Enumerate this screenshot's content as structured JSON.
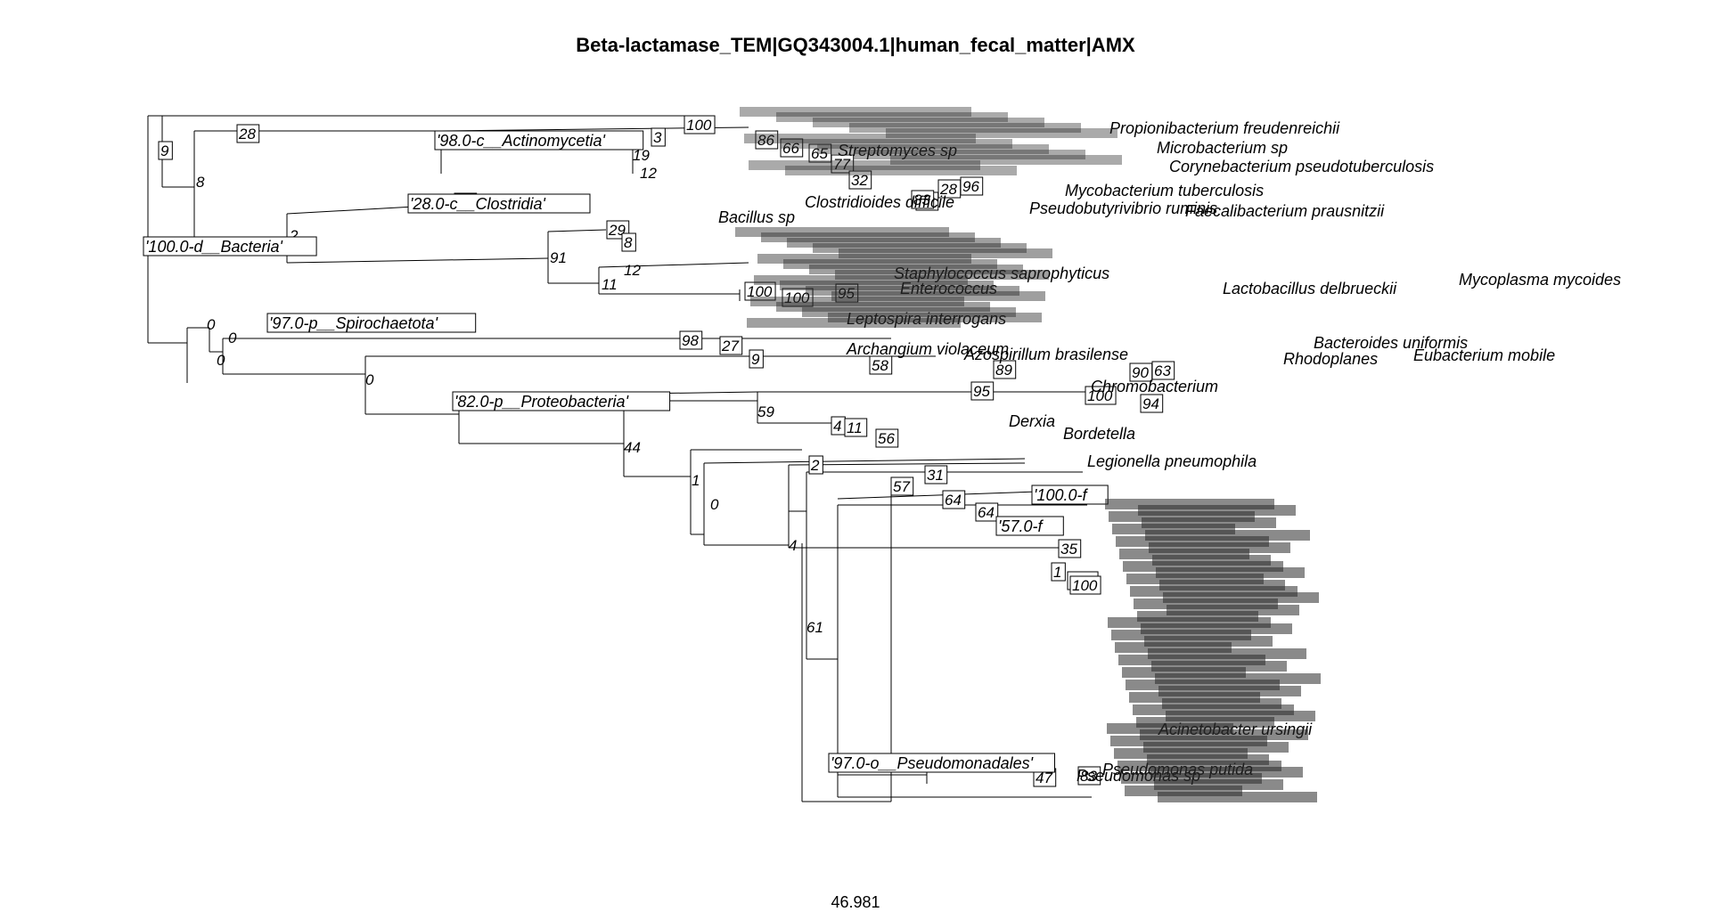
{
  "title": "Beta-lactamase_TEM|GQ343004.1|human_fecal_matter|AMX",
  "scale_label": "46.981",
  "clades": [
    "'100.0-d__Bacteria'",
    "'98.0-c__Actinomycetia'",
    "'28.0-c__Clostridia'",
    "'97.0-p__Spirochaetota'",
    "'82.0-p__Proteobacteria'",
    "'100.0-f",
    "'57.0-f",
    "'97.0-o__Pseudomonadales'"
  ],
  "taxa": [
    "Propionibacterium freudenreichii",
    "Microbacterium sp",
    "Corynebacterium pseudotuberculosis",
    "Mycobacterium tuberculosis",
    "Pseudobutyrivibrio ruminis",
    "Faecalibacterium prausnitzii",
    "Streptomyces sp",
    "Lactobacillus delbrueckii",
    "Mycoplasma mycoides",
    "Leptospira interrogans",
    "Bacteroides uniformis",
    "Rhodoplanes",
    "Eubacterium mobile",
    "Archangium violaceum",
    "Azospirillum brasilense",
    "Chromobacterium",
    "Derxia",
    "Bordetella",
    "Legionella pneumophila",
    "Pseudomonas putida",
    "Pseudomonas sp",
    "Acinetobacter ursingii",
    "Enterococcus",
    "Staphylococcus saprophyticus",
    "Bacillus sp",
    "Clostridioides difficile"
  ],
  "support_values": [
    "9",
    "8",
    "28",
    "100",
    "3",
    "19",
    "12",
    "86",
    "66",
    "65",
    "77",
    "32",
    "83",
    "28",
    "96",
    "2",
    "91",
    "29",
    "8",
    "12",
    "11",
    "100",
    "100",
    "95",
    "0",
    "0",
    "0",
    "98",
    "27",
    "9",
    "58",
    "89",
    "90",
    "63",
    "0",
    "59",
    "95",
    "100",
    "94",
    "4",
    "11",
    "56",
    "44",
    "1",
    "0",
    "2",
    "31",
    "57",
    "64",
    "64",
    "4",
    "61",
    "100",
    "35",
    "1",
    "100",
    "83",
    "47",
    "41",
    "83"
  ]
}
